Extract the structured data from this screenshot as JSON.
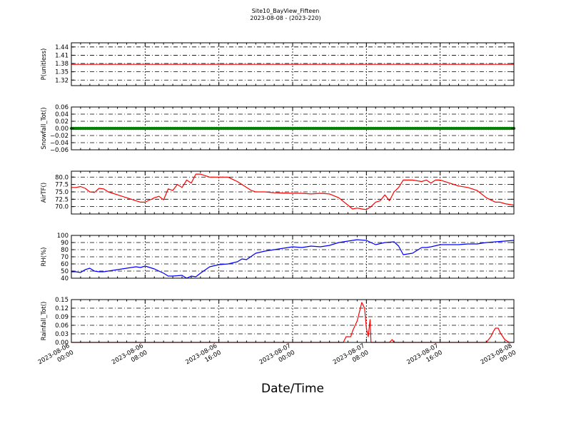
{
  "figure": {
    "title": "Site10_BayView_Fifteen",
    "subtitle": "2023-08-08 - (2023-220)",
    "xlabel": "Date/Time",
    "x_ticks": [
      {
        "line1": "2023-08-06",
        "line2": "00:00"
      },
      {
        "line1": "2023-08-06",
        "line2": "08:00"
      },
      {
        "line1": "2023-08-06",
        "line2": "16:00"
      },
      {
        "line1": "2023-08-07",
        "line2": "00:00"
      },
      {
        "line1": "2023-08-07",
        "line2": "08:00"
      },
      {
        "line1": "2023-08-07",
        "line2": "16:00"
      },
      {
        "line1": "2023-08-08",
        "line2": "00:00"
      }
    ]
  },
  "chart_data": [
    {
      "type": "line",
      "ylabel": "P(unitless)",
      "ylim": [
        1.3,
        1.455
      ],
      "yticks": [
        1.32,
        1.35,
        1.38,
        1.41,
        1.44
      ],
      "ytick_labels": [
        "1.32",
        "1.35",
        "1.38",
        "1.41",
        "1.44"
      ],
      "grid": true,
      "series": [
        {
          "color": "#ff0000",
          "x": [
            0,
            48
          ],
          "y": [
            1.377,
            1.377
          ]
        }
      ]
    },
    {
      "type": "line",
      "ylabel": "Snowfall_Tot()",
      "ylim": [
        -0.06,
        0.06
      ],
      "yticks": [
        -0.06,
        -0.04,
        -0.02,
        0.0,
        0.02,
        0.04,
        0.06
      ],
      "ytick_labels": [
        "−0.06",
        "−0.04",
        "−0.02",
        "0.00",
        "0.02",
        "0.04",
        "0.06"
      ],
      "grid": true,
      "series": [
        {
          "color": "#008000",
          "x": [
            0,
            48
          ],
          "y": [
            0.0,
            0.0
          ],
          "marker": "dot"
        }
      ]
    },
    {
      "type": "line",
      "ylabel": "AirTF()",
      "ylim": [
        67.5,
        82.0
      ],
      "yticks": [
        70.0,
        72.5,
        75.0,
        77.5,
        80.0
      ],
      "ytick_labels": [
        "70.0",
        "72.5",
        "75.0",
        "77.5",
        "80.0"
      ],
      "grid": true,
      "series": [
        {
          "color": "#ff0000",
          "x": [
            0,
            0.5,
            1,
            1.5,
            2,
            2.5,
            3,
            3.5,
            4,
            4.5,
            5,
            5.5,
            6,
            6.5,
            7,
            7.5,
            8,
            8.5,
            8.7,
            9,
            9.5,
            10,
            10.5,
            11,
            11.5,
            12,
            12.5,
            13,
            13.5,
            14,
            15,
            16,
            17,
            18,
            19,
            19.5,
            20,
            21,
            22,
            23,
            24,
            25,
            26,
            27,
            28,
            29,
            30,
            30.5,
            31,
            31.5,
            32,
            32.5,
            33,
            33.5,
            34,
            34.5,
            35,
            35.5,
            36,
            37,
            38,
            38.5,
            39,
            39.5,
            40,
            41,
            42,
            43,
            44,
            45,
            46,
            46.5,
            47,
            48
          ],
          "y": [
            76.5,
            76.5,
            76.8,
            76.2,
            75.0,
            74.8,
            76.2,
            76.0,
            75.0,
            74.5,
            74.0,
            73.5,
            73.0,
            72.5,
            72.0,
            71.5,
            71.5,
            72.3,
            72.5,
            73.0,
            73.5,
            72.3,
            76.0,
            75.5,
            77.5,
            76.5,
            79.0,
            78.0,
            81.0,
            81.0,
            80.0,
            80.0,
            80.0,
            78.5,
            76.5,
            75.5,
            75.0,
            75.0,
            74.7,
            74.6,
            74.5,
            74.5,
            74.3,
            74.5,
            74.3,
            73.0,
            70.5,
            69.2,
            69.5,
            69.2,
            69.0,
            70.0,
            71.5,
            72.0,
            74.0,
            72.0,
            75.0,
            76.5,
            79.0,
            79.0,
            78.5,
            79.0,
            78.0,
            79.0,
            79.0,
            78.0,
            77.0,
            76.5,
            75.5,
            73.0,
            71.5,
            71.5,
            71.0,
            70.5
          ]
        }
      ]
    },
    {
      "type": "line",
      "ylabel": "RH(%)",
      "ylim": [
        40,
        100
      ],
      "yticks": [
        40,
        50,
        60,
        70,
        80,
        90,
        100
      ],
      "ytick_labels": [
        "40",
        "50",
        "60",
        "70",
        "80",
        "90",
        "100"
      ],
      "grid": true,
      "series": [
        {
          "color": "#0000ff",
          "x": [
            0,
            0.5,
            1,
            1.5,
            2,
            2.5,
            3,
            3.5,
            4,
            5,
            6,
            7,
            7.5,
            8,
            8.5,
            9,
            10,
            10.5,
            11,
            12,
            12.5,
            13,
            13.5,
            14,
            15,
            16,
            17,
            18,
            18.5,
            19,
            20,
            21,
            22,
            23,
            24,
            25,
            26,
            27,
            28,
            29,
            30,
            31,
            32,
            33,
            34,
            35,
            35.5,
            36,
            37,
            38,
            38.5,
            39,
            40,
            41,
            42,
            43,
            44,
            45,
            46,
            47,
            48
          ],
          "y": [
            49,
            49,
            48,
            52,
            54,
            50,
            49,
            49,
            50,
            52,
            54,
            56,
            55,
            57,
            55,
            53,
            47,
            43,
            43,
            44,
            40,
            43,
            42,
            47,
            56,
            59,
            60,
            63,
            67,
            66,
            75,
            78,
            80,
            82,
            84,
            83,
            85,
            84,
            86,
            90,
            92,
            94,
            93,
            87,
            90,
            91,
            85,
            73,
            75,
            83,
            83,
            84,
            87,
            87,
            87,
            88,
            88,
            90,
            91,
            92,
            93
          ]
        }
      ]
    },
    {
      "type": "line",
      "ylabel": "Rainfall_Tot()",
      "ylim": [
        0.0,
        0.15
      ],
      "yticks": [
        0.0,
        0.03,
        0.06,
        0.09,
        0.12,
        0.15
      ],
      "ytick_labels": [
        "0.00",
        "0.03",
        "0.06",
        "0.09",
        "0.12",
        "0.15"
      ],
      "grid": true,
      "series": [
        {
          "color": "#ff0000",
          "x": [
            0,
            29.5,
            29.8,
            30.3,
            30.5,
            31,
            31.5,
            31.8,
            32,
            32.2,
            32.4,
            32.5,
            33,
            34.5,
            34.8,
            35,
            36,
            45,
            45.5,
            45.8,
            46,
            46.3,
            46.5,
            47,
            47.5,
            48
          ],
          "y": [
            0,
            0,
            0.02,
            0.02,
            0.04,
            0.075,
            0.14,
            0.12,
            0.05,
            0.02,
            0.08,
            0,
            0,
            0,
            0.01,
            0,
            0,
            0,
            0.02,
            0.04,
            0.05,
            0.05,
            0.035,
            0.01,
            0,
            0
          ]
        }
      ]
    }
  ]
}
